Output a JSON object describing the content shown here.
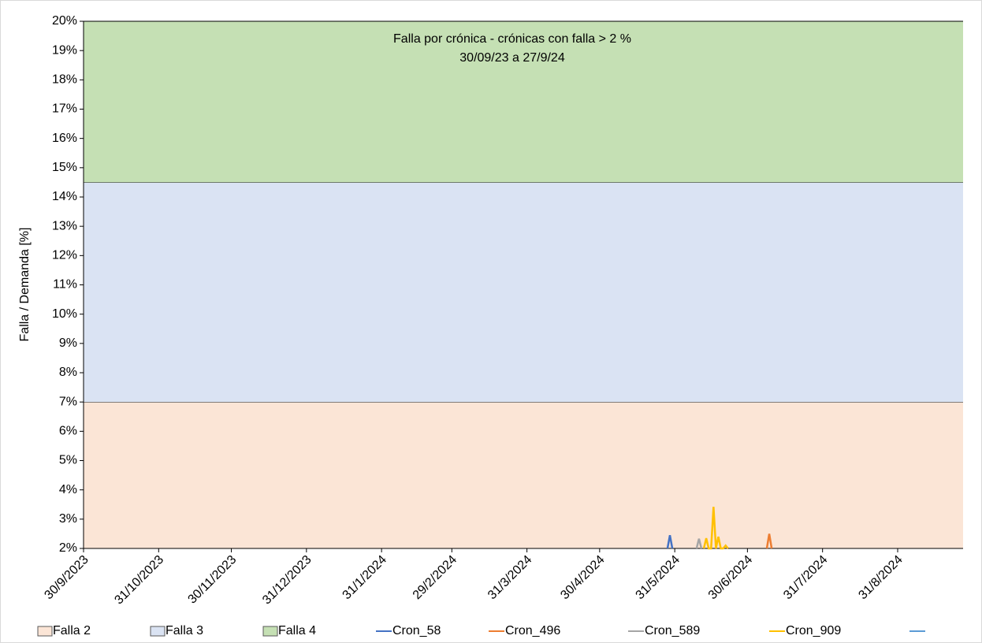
{
  "chart_data": {
    "type": "line",
    "title": "Falla por crónica - crónicas con falla > 2 %",
    "subtitle": "30/09/23 a 27/9/24",
    "y_label": "Falla / Demanda [%]",
    "ylim": [
      2,
      20
    ],
    "yticks": [
      {
        "value": 2,
        "label": "2%"
      },
      {
        "value": 3,
        "label": "3%"
      },
      {
        "value": 4,
        "label": "4%"
      },
      {
        "value": 5,
        "label": "5%"
      },
      {
        "value": 6,
        "label": "6%"
      },
      {
        "value": 7,
        "label": "7%"
      },
      {
        "value": 8,
        "label": "8%"
      },
      {
        "value": 9,
        "label": "9%"
      },
      {
        "value": 10,
        "label": "10%"
      },
      {
        "value": 11,
        "label": "11%"
      },
      {
        "value": 12,
        "label": "12%"
      },
      {
        "value": 13,
        "label": "13%"
      },
      {
        "value": 14,
        "label": "14%"
      },
      {
        "value": 15,
        "label": "15%"
      },
      {
        "value": 16,
        "label": "16%"
      },
      {
        "value": 17,
        "label": "17%"
      },
      {
        "value": 18,
        "label": "18%"
      },
      {
        "value": 19,
        "label": "19%"
      },
      {
        "value": 20,
        "label": "20%"
      }
    ],
    "xlim": [
      "2023-09-30",
      "2024-09-27"
    ],
    "xticks": [
      {
        "value": "2023-09-30",
        "label": "30/9/2023"
      },
      {
        "value": "2023-10-31",
        "label": "31/10/2023"
      },
      {
        "value": "2023-11-30",
        "label": "30/11/2023"
      },
      {
        "value": "2023-12-31",
        "label": "31/12/2023"
      },
      {
        "value": "2024-01-31",
        "label": "31/1/2024"
      },
      {
        "value": "2024-02-29",
        "label": "29/2/2024"
      },
      {
        "value": "2024-03-31",
        "label": "31/3/2024"
      },
      {
        "value": "2024-04-30",
        "label": "30/4/2024"
      },
      {
        "value": "2024-05-31",
        "label": "31/5/2024"
      },
      {
        "value": "2024-06-30",
        "label": "30/6/2024"
      },
      {
        "value": "2024-07-31",
        "label": "31/7/2024"
      },
      {
        "value": "2024-08-31",
        "label": "31/8/2024"
      }
    ],
    "bands": [
      {
        "name": "Falla 2",
        "color": "#fbe5d6",
        "value": 7
      },
      {
        "name": "Falla 3",
        "color": "#dae3f3",
        "value": 7.5
      },
      {
        "name": "Falla 4",
        "color": "#c5e0b4",
        "value": 5.5
      }
    ],
    "series": [
      {
        "name": "Cron_58",
        "color": "#4472c4",
        "x": [
          "2024-05-28",
          "2024-05-29",
          "2024-05-30"
        ],
        "values": [
          2,
          2.45,
          2
        ]
      },
      {
        "name": "Cron_496",
        "color": "#ed7d31",
        "x": [
          "2024-07-08",
          "2024-07-09",
          "2024-07-10"
        ],
        "values": [
          2,
          2.5,
          2
        ]
      },
      {
        "name": "Cron_589",
        "color": "#a5a5a5",
        "x": [
          "2024-06-09",
          "2024-06-10",
          "2024-06-11"
        ],
        "values": [
          2,
          2.33,
          2
        ]
      },
      {
        "name": "Cron_909",
        "color": "#ffc000",
        "x": [
          "2024-06-12",
          "2024-06-13",
          "2024-06-14",
          "2024-06-15",
          "2024-06-16",
          "2024-06-17",
          "2024-06-18",
          "2024-06-19",
          "2024-06-20",
          "2024-06-21",
          "2024-06-22"
        ],
        "values": [
          2,
          2.35,
          2,
          2,
          3.42,
          2,
          2.4,
          2,
          2,
          2.1,
          2
        ]
      },
      {
        "name": null,
        "color": "#5b9bd5",
        "x": [],
        "values": []
      }
    ]
  }
}
